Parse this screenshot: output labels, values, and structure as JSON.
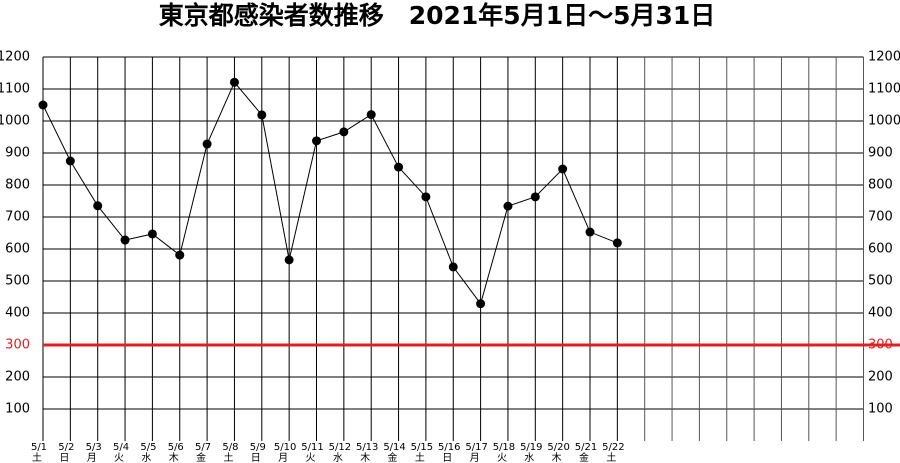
{
  "chart_data": {
    "type": "line",
    "title": "東京都感染者数推移　2021年5月1日～5月31日",
    "categories": [
      "5/1",
      "5/2",
      "5/3",
      "5/4",
      "5/5",
      "5/6",
      "5/7",
      "5/8",
      "5/9",
      "5/10",
      "5/11",
      "5/12",
      "5/13",
      "5/14",
      "5/15",
      "5/16",
      "5/17",
      "5/18",
      "5/19",
      "5/20",
      "5/21",
      "5/22",
      null,
      null,
      null,
      null,
      null,
      null,
      null,
      null,
      null
    ],
    "weekdays": [
      "土",
      "日",
      "月",
      "火",
      "水",
      "木",
      "金",
      "土",
      "日",
      "月",
      "火",
      "水",
      "木",
      "金",
      "土",
      "日",
      "月",
      "火",
      "水",
      "木",
      "金",
      "土",
      null,
      null,
      null,
      null,
      null,
      null,
      null,
      null,
      null
    ],
    "values": [
      1050,
      875,
      735,
      628,
      647,
      581,
      928,
      1121,
      1019,
      566,
      938,
      966,
      1020,
      856,
      763,
      544,
      429,
      734,
      763,
      850,
      653,
      619,
      null,
      null,
      null,
      null,
      null,
      null,
      null,
      null,
      null
    ],
    "color": "#000000",
    "ylim": [
      0,
      1200
    ],
    "yticks": [
      100,
      200,
      300,
      400,
      500,
      600,
      700,
      800,
      900,
      1000,
      1100,
      1200
    ],
    "reference_line": 300,
    "reference_color": "#e02020",
    "grid": true
  }
}
